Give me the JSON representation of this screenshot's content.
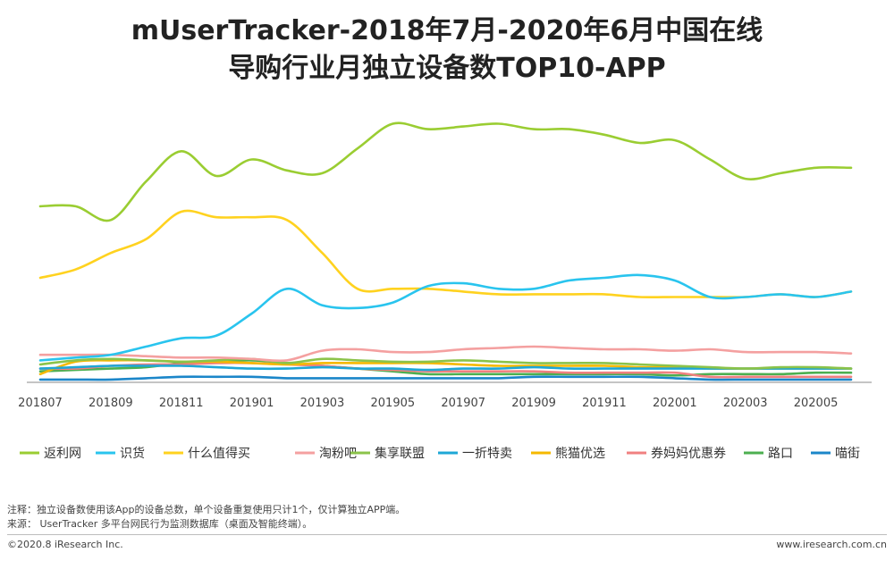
{
  "title": {
    "line1": "mUserTracker-2018年7月-2020年6月中国在线",
    "line2": "导购行业月独立设备数TOP10-APP"
  },
  "chart_data": {
    "type": "line",
    "ylim": [
      0,
      100
    ],
    "grid": false,
    "legend_position": "bottom",
    "x": [
      "201807",
      "201808",
      "201809",
      "201810",
      "201811",
      "201812",
      "201901",
      "201902",
      "201903",
      "201904",
      "201905",
      "201906",
      "201907",
      "201908",
      "201909",
      "201910",
      "201911",
      "201912",
      "202001",
      "202002",
      "202003",
      "202004",
      "202005",
      "202006"
    ],
    "x_tick_labels": [
      "201807",
      "201809",
      "201811",
      "201901",
      "201903",
      "201905",
      "201907",
      "201909",
      "201911",
      "202001",
      "202003",
      "202005"
    ],
    "series": [
      {
        "name": "返利网",
        "color": "#9ACD32",
        "values": [
          64,
          64,
          59,
          73,
          84,
          75,
          81,
          77,
          76,
          85,
          94,
          92,
          93,
          94,
          92,
          92,
          90,
          87,
          88,
          81,
          74,
          76,
          78,
          78
        ]
      },
      {
        "name": "识货",
        "color": "#29C4EE",
        "values": [
          8,
          9,
          10,
          13,
          16,
          17,
          25,
          34,
          28,
          27,
          29,
          35,
          36,
          34,
          34,
          37,
          38,
          39,
          37,
          31,
          31,
          32,
          31,
          33
        ]
      },
      {
        "name": "什么值得买",
        "color": "#FFD21F",
        "values": [
          38,
          41,
          47,
          52,
          62,
          60,
          60,
          59,
          47,
          34,
          34,
          34,
          33,
          32,
          32,
          32,
          32,
          31,
          31,
          31,
          31,
          32,
          31,
          33
        ]
      },
      {
        "name": "淘粉吧",
        "color": "#F4A0A0",
        "values": [
          10,
          10,
          10,
          9.5,
          9,
          9,
          8.5,
          8,
          11.5,
          12,
          11,
          11,
          12,
          12.5,
          13,
          12.5,
          12,
          12,
          11.5,
          12,
          11,
          11,
          11,
          10.5
        ]
      },
      {
        "name": "集享联盟",
        "color": "#8BC34A",
        "values": [
          6.5,
          8,
          8.5,
          8,
          7.5,
          8,
          8.5,
          7,
          8.5,
          8,
          7.5,
          7.5,
          8,
          7.5,
          7,
          7,
          7,
          6.5,
          6,
          5.5,
          5,
          5.5,
          5.5,
          5
        ]
      },
      {
        "name": "一折特卖",
        "color": "#1EA7D6",
        "values": [
          5,
          5.5,
          6,
          6,
          6,
          5.5,
          5,
          5,
          5.5,
          5,
          5,
          4.5,
          5,
          5,
          5.5,
          5,
          5,
          5,
          5,
          5,
          5,
          5,
          5,
          5
        ]
      },
      {
        "name": "熊猫优选",
        "color": "#F5B800",
        "values": [
          3,
          7.5,
          8,
          8,
          7.5,
          7.5,
          7,
          6.5,
          7,
          7,
          7,
          7,
          6.5,
          6,
          6,
          6,
          6,
          5.5,
          5.5,
          5,
          5,
          5,
          5,
          5
        ]
      },
      {
        "name": "券妈妈优惠券",
        "color": "#F08080",
        "values": [
          5,
          5,
          6,
          6.5,
          6.5,
          7,
          7,
          6.5,
          6,
          5,
          4.5,
          4,
          4,
          4,
          4,
          3.5,
          3.5,
          3.5,
          3.5,
          2,
          2,
          2,
          2,
          2
        ]
      },
      {
        "name": "路口",
        "color": "#4CAF50",
        "values": [
          4,
          4.5,
          5,
          5.5,
          7,
          7.5,
          8,
          7,
          6,
          5,
          4,
          3,
          3,
          3,
          3,
          3,
          3,
          3,
          2.5,
          3,
          3,
          3,
          3.5,
          3.5
        ]
      },
      {
        "name": "喵街",
        "color": "#1B86C9",
        "values": [
          1,
          1,
          1,
          1.5,
          2,
          2,
          2,
          1.5,
          1.5,
          1.5,
          1.5,
          1.5,
          1.5,
          1.5,
          2,
          2,
          2,
          2,
          1.5,
          1,
          1,
          1,
          1,
          1
        ]
      }
    ]
  },
  "notes": {
    "line1": "注释：独立设备数使用该App的设备总数，单个设备重复使用只计1个，仅计算独立APP端。",
    "line2": "来源： UserTracker 多平台网民行为监测数据库（桌面及智能终端）。"
  },
  "footer": {
    "copyright": "©2020.8 iResearch Inc.",
    "website": "www.iresearch.com.cn"
  }
}
